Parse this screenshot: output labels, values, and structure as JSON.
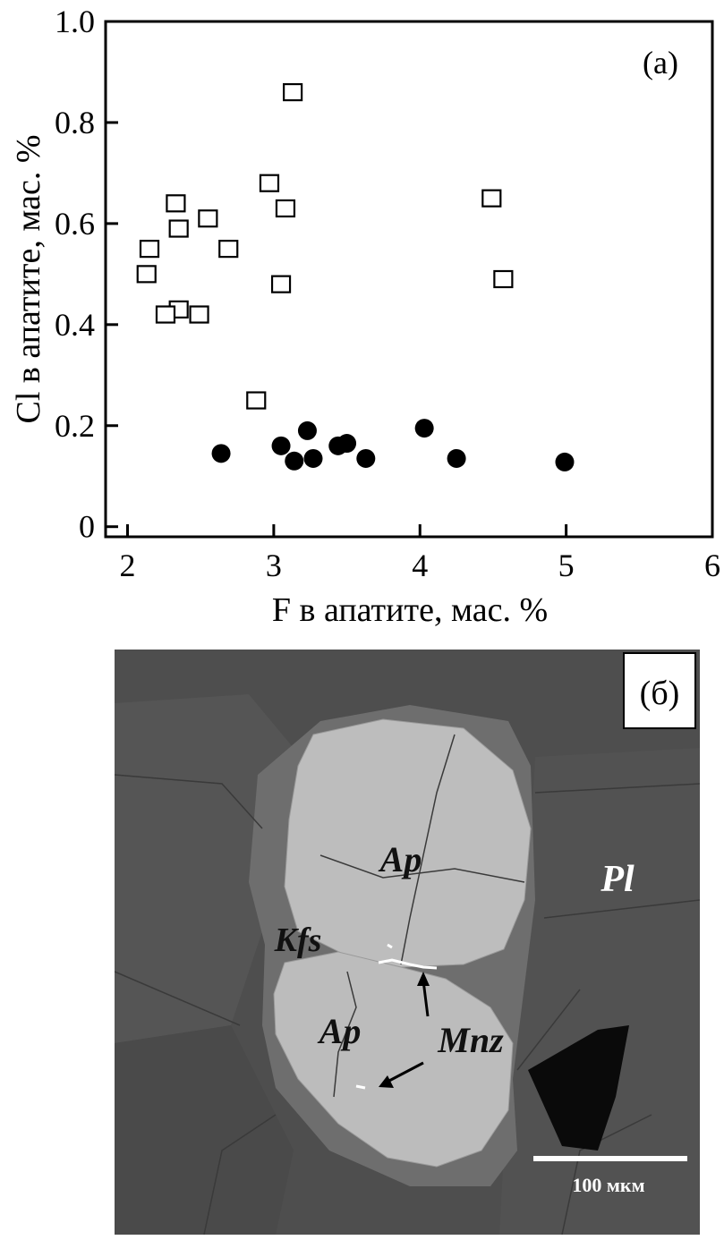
{
  "chart_data": {
    "type": "scatter",
    "panel_label": "(a)",
    "xlabel": "F в апатите, мас. %",
    "ylabel": "Cl в апатите, мас. %",
    "xlim": [
      1.85,
      6
    ],
    "ylim": [
      -0.02,
      1.0
    ],
    "x_ticks": [
      2,
      3,
      4,
      5,
      6
    ],
    "y_ticks": [
      0,
      0.2,
      0.4,
      0.6,
      0.8,
      1.0
    ],
    "x_tick_labels": [
      "2",
      "3",
      "4",
      "5",
      "6"
    ],
    "y_tick_labels": [
      "0",
      "0.2",
      "0.4",
      "0.6",
      "0.8",
      "1.0"
    ],
    "grid": false,
    "series": [
      {
        "marker": "open-square",
        "points": [
          {
            "x": 3.13,
            "y": 0.86
          },
          {
            "x": 2.97,
            "y": 0.68
          },
          {
            "x": 3.08,
            "y": 0.63
          },
          {
            "x": 2.33,
            "y": 0.64
          },
          {
            "x": 2.55,
            "y": 0.61
          },
          {
            "x": 2.35,
            "y": 0.59
          },
          {
            "x": 2.69,
            "y": 0.55
          },
          {
            "x": 2.15,
            "y": 0.55
          },
          {
            "x": 2.13,
            "y": 0.5
          },
          {
            "x": 3.05,
            "y": 0.48
          },
          {
            "x": 2.35,
            "y": 0.43
          },
          {
            "x": 2.26,
            "y": 0.42
          },
          {
            "x": 2.49,
            "y": 0.42
          },
          {
            "x": 2.88,
            "y": 0.25
          },
          {
            "x": 4.49,
            "y": 0.65
          },
          {
            "x": 4.57,
            "y": 0.49
          }
        ]
      },
      {
        "marker": "filled-circle",
        "points": [
          {
            "x": 2.64,
            "y": 0.145
          },
          {
            "x": 3.05,
            "y": 0.16
          },
          {
            "x": 3.23,
            "y": 0.19
          },
          {
            "x": 3.14,
            "y": 0.13
          },
          {
            "x": 3.27,
            "y": 0.135
          },
          {
            "x": 3.44,
            "y": 0.16
          },
          {
            "x": 3.5,
            "y": 0.165
          },
          {
            "x": 3.63,
            "y": 0.135
          },
          {
            "x": 4.03,
            "y": 0.195
          },
          {
            "x": 4.25,
            "y": 0.135
          },
          {
            "x": 4.99,
            "y": 0.128
          }
        ]
      }
    ]
  },
  "micrograph": {
    "panel_label": "(б)",
    "labels": {
      "ap_upper": "Ap",
      "ap_lower": "Ap",
      "pl": "Pl",
      "kfs": "Kfs",
      "mnz": "Mnz"
    },
    "scale_bar": "100 мкм"
  }
}
